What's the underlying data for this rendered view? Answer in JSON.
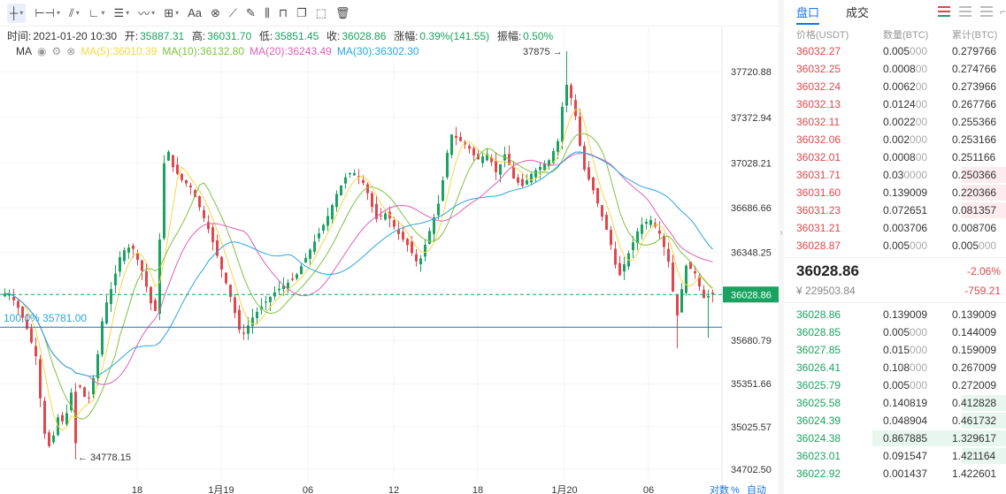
{
  "toolbar": {
    "tools": [
      {
        "name": "crosshair-tool",
        "glyph": "┼",
        "caret": true,
        "active": true
      },
      {
        "name": "horizontal-line-tool",
        "glyph": "⊢⊣",
        "caret": true
      },
      {
        "name": "trend-line-tool",
        "glyph": "⫽",
        "caret": true
      },
      {
        "name": "angle-tool",
        "glyph": "∟",
        "caret": true
      },
      {
        "name": "parallel-lines-tool",
        "glyph": "☰",
        "caret": true
      },
      {
        "name": "wave-tool",
        "glyph": "〰",
        "caret": true
      },
      {
        "name": "grid-tool",
        "glyph": "⊞",
        "caret": true
      },
      {
        "name": "text-tool",
        "glyph": "Aa",
        "caret": false
      },
      {
        "name": "magnet-tool",
        "glyph": "⊗",
        "caret": false
      },
      {
        "name": "ruler-tool",
        "glyph": "⟋",
        "caret": false
      },
      {
        "name": "pencil-tool",
        "glyph": "✎",
        "caret": false
      },
      {
        "name": "measure-tool",
        "glyph": "⫼",
        "caret": false
      },
      {
        "name": "lock-tool",
        "glyph": "⊓",
        "caret": false
      },
      {
        "name": "copy-tool",
        "glyph": "❐",
        "caret": false
      },
      {
        "name": "screenshot-tool",
        "glyph": "⬚",
        "caret": false
      },
      {
        "name": "trash-tool",
        "glyph": "🗑",
        "caret": false
      }
    ]
  },
  "info": {
    "time_label": "时间:",
    "time": "2021-01-20 10:30",
    "open_label": "开:",
    "open": "35887.31",
    "high_label": "高:",
    "high": "36031.70",
    "low_label": "低:",
    "low": "35851.45",
    "close_label": "收:",
    "close": "36028.86",
    "change_label": "涨幅:",
    "change": "0.39%(141.55)",
    "amp_label": "振幅:",
    "amp": "0.50%"
  },
  "ma_legend": {
    "label": "MA",
    "ma5": "MA(5):36010.39",
    "ma10": "MA(10):36132.80",
    "ma20": "MA(20):36243.49",
    "ma30": "MA(30):36302.30"
  },
  "colors": {
    "up": "#1aa260",
    "down": "#e0474c",
    "ma5": "#f5d742",
    "ma10": "#7dc242",
    "ma20": "#e05fb6",
    "ma30": "#2ba6de",
    "accent": "#1a73e8"
  },
  "chart_data": {
    "type": "candlestick",
    "y_axis_ticks": [
      "37720.88",
      "37372.94",
      "37028.21",
      "36686.66",
      "36348.25",
      "36028.86",
      "35680.79",
      "35351.66",
      "35025.57",
      "34702.50"
    ],
    "y_axis_tick_values": [
      37720.88,
      37372.94,
      37028.21,
      36686.66,
      36348.25,
      36028.86,
      35680.79,
      35351.66,
      35025.57,
      34702.5
    ],
    "x_axis_ticks": [
      "18",
      "1月19",
      "06",
      "12",
      "18",
      "1月20",
      "06"
    ],
    "current_price": "36028.86",
    "current_price_value": 36028.86,
    "hline_label": "100.0% 35781.00",
    "hline_value": 35781.0,
    "high_annotation": "37875",
    "high_value": 37875,
    "low_annotation": "34778.15",
    "low_value": 34778.15,
    "bottom_controls": [
      "对数",
      "%",
      "自动"
    ]
  },
  "orderbook": {
    "tabs": [
      "盘口",
      "成交"
    ],
    "headers": [
      "价格(USDT)",
      "数量(BTC)",
      "累计(BTC)"
    ],
    "asks": [
      {
        "price": "36032.27",
        "qty_main": "0.005",
        "qty_dim": "000",
        "tot_main": "0.279766",
        "tot_dim": "",
        "depth": 0.0
      },
      {
        "price": "36032.25",
        "qty_main": "0.0008",
        "qty_dim": "00",
        "tot_main": "0.274766",
        "tot_dim": "",
        "depth": 0.0
      },
      {
        "price": "36032.24",
        "qty_main": "0.0062",
        "qty_dim": "00",
        "tot_main": "0.273966",
        "tot_dim": "",
        "depth": 0.0
      },
      {
        "price": "36032.13",
        "qty_main": "0.0124",
        "qty_dim": "00",
        "tot_main": "0.267766",
        "tot_dim": "",
        "depth": 0.0
      },
      {
        "price": "36032.11",
        "qty_main": "0.0022",
        "qty_dim": "00",
        "tot_main": "0.255366",
        "tot_dim": "",
        "depth": 0.0
      },
      {
        "price": "36032.06",
        "qty_main": "0.002",
        "qty_dim": "000",
        "tot_main": "0.253166",
        "tot_dim": "",
        "depth": 0.0
      },
      {
        "price": "36032.01",
        "qty_main": "0.0008",
        "qty_dim": "00",
        "tot_main": "0.251166",
        "tot_dim": "",
        "depth": 0.0
      },
      {
        "price": "36031.71",
        "qty_main": "0.03",
        "qty_dim": "0000",
        "tot_main": "0.250366",
        "tot_dim": "",
        "depth": 0.2
      },
      {
        "price": "36031.60",
        "qty_main": "0.139009",
        "qty_dim": "",
        "tot_main": "0.220366",
        "tot_dim": "",
        "depth": 0.2
      },
      {
        "price": "36031.23",
        "qty_main": "0.072651",
        "qty_dim": "",
        "tot_main": "0.081357",
        "tot_dim": "",
        "depth": 0.2
      },
      {
        "price": "36031.21",
        "qty_main": "0.003706",
        "qty_dim": "",
        "tot_main": "0.008706",
        "tot_dim": "",
        "depth": 0.0
      },
      {
        "price": "36028.87",
        "qty_main": "0.005",
        "qty_dim": "000",
        "tot_main": "0.005",
        "tot_dim": "000",
        "depth": 0.0
      }
    ],
    "mid": {
      "last": "36028.86",
      "cny": "¥ 229503.84",
      "pct": "-2.06%",
      "chg": "-759.21"
    },
    "bids": [
      {
        "price": "36028.86",
        "qty_main": "0.139009",
        "qty_dim": "",
        "tot_main": "0.139009",
        "tot_dim": "",
        "depth": 0.0
      },
      {
        "price": "36028.85",
        "qty_main": "0.005",
        "qty_dim": "000",
        "tot_main": "0.144009",
        "tot_dim": "",
        "depth": 0.0
      },
      {
        "price": "36027.85",
        "qty_main": "0.015",
        "qty_dim": "000",
        "tot_main": "0.159009",
        "tot_dim": "",
        "depth": 0.0
      },
      {
        "price": "36026.41",
        "qty_main": "0.108",
        "qty_dim": "000",
        "tot_main": "0.267009",
        "tot_dim": "",
        "depth": 0.0
      },
      {
        "price": "36025.79",
        "qty_main": "0.005",
        "qty_dim": "000",
        "tot_main": "0.272009",
        "tot_dim": "",
        "depth": 0.0
      },
      {
        "price": "36025.58",
        "qty_main": "0.140819",
        "qty_dim": "",
        "tot_main": "0.412828",
        "tot_dim": "",
        "depth": 0.2
      },
      {
        "price": "36024.39",
        "qty_main": "0.048904",
        "qty_dim": "",
        "tot_main": "0.461732",
        "tot_dim": "",
        "depth": 0.2
      },
      {
        "price": "36024.38",
        "qty_main": "0.867885",
        "qty_dim": "",
        "tot_main": "1.329617",
        "tot_dim": "",
        "depth": 0.6
      },
      {
        "price": "36023.01",
        "qty_main": "0.091547",
        "qty_dim": "",
        "tot_main": "1.421164",
        "tot_dim": "",
        "depth": 0.2
      },
      {
        "price": "36022.92",
        "qty_main": "0.001437",
        "qty_dim": "",
        "tot_main": "1.422601",
        "tot_dim": "",
        "depth": 0.0
      }
    ]
  }
}
